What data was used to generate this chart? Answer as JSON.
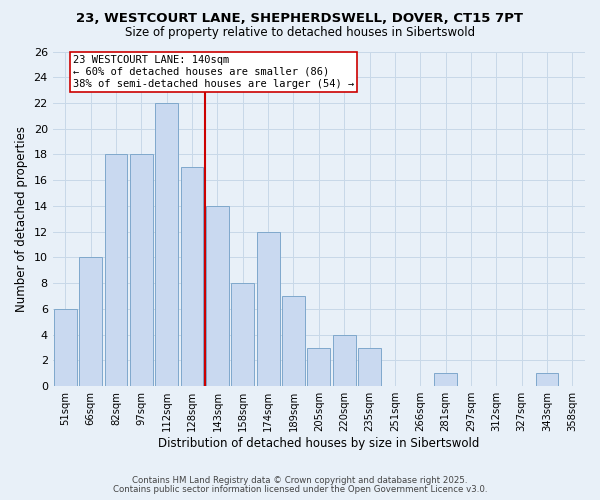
{
  "title_line1": "23, WESTCOURT LANE, SHEPHERDSWELL, DOVER, CT15 7PT",
  "title_line2": "Size of property relative to detached houses in Sibertswold",
  "xlabel": "Distribution of detached houses by size in Sibertswold",
  "ylabel": "Number of detached properties",
  "bar_labels": [
    "51sqm",
    "66sqm",
    "82sqm",
    "97sqm",
    "112sqm",
    "128sqm",
    "143sqm",
    "158sqm",
    "174sqm",
    "189sqm",
    "205sqm",
    "220sqm",
    "235sqm",
    "251sqm",
    "266sqm",
    "281sqm",
    "297sqm",
    "312sqm",
    "327sqm",
    "343sqm",
    "358sqm"
  ],
  "bar_values": [
    6,
    10,
    18,
    18,
    22,
    17,
    14,
    8,
    12,
    7,
    3,
    4,
    3,
    0,
    0,
    1,
    0,
    0,
    0,
    1,
    0
  ],
  "bar_color": "#c9d9f0",
  "bar_edge_color": "#7fa8cc",
  "property_line_label": "23 WESTCOURT LANE: 140sqm",
  "annotation_smaller": "← 60% of detached houses are smaller (86)",
  "annotation_larger": "38% of semi-detached houses are larger (54) →",
  "ref_line_color": "#cc0000",
  "ref_line_index": 6,
  "ylim": [
    0,
    26
  ],
  "yticks": [
    0,
    2,
    4,
    6,
    8,
    10,
    12,
    14,
    16,
    18,
    20,
    22,
    24,
    26
  ],
  "grid_color": "#c8d8e8",
  "bg_color": "#e8f0f8",
  "footnote1": "Contains HM Land Registry data © Crown copyright and database right 2025.",
  "footnote2": "Contains public sector information licensed under the Open Government Licence v3.0."
}
